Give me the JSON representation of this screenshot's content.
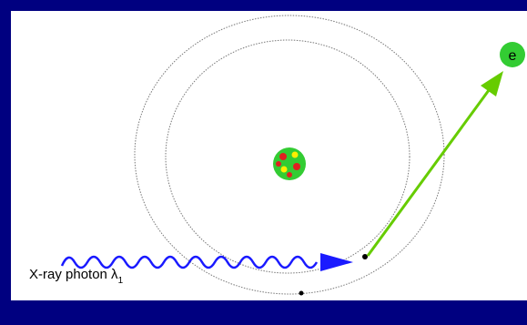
{
  "photon": {
    "label": "X-ray photon λ",
    "subscript": "1"
  },
  "electron": {
    "label": "e"
  }
}
